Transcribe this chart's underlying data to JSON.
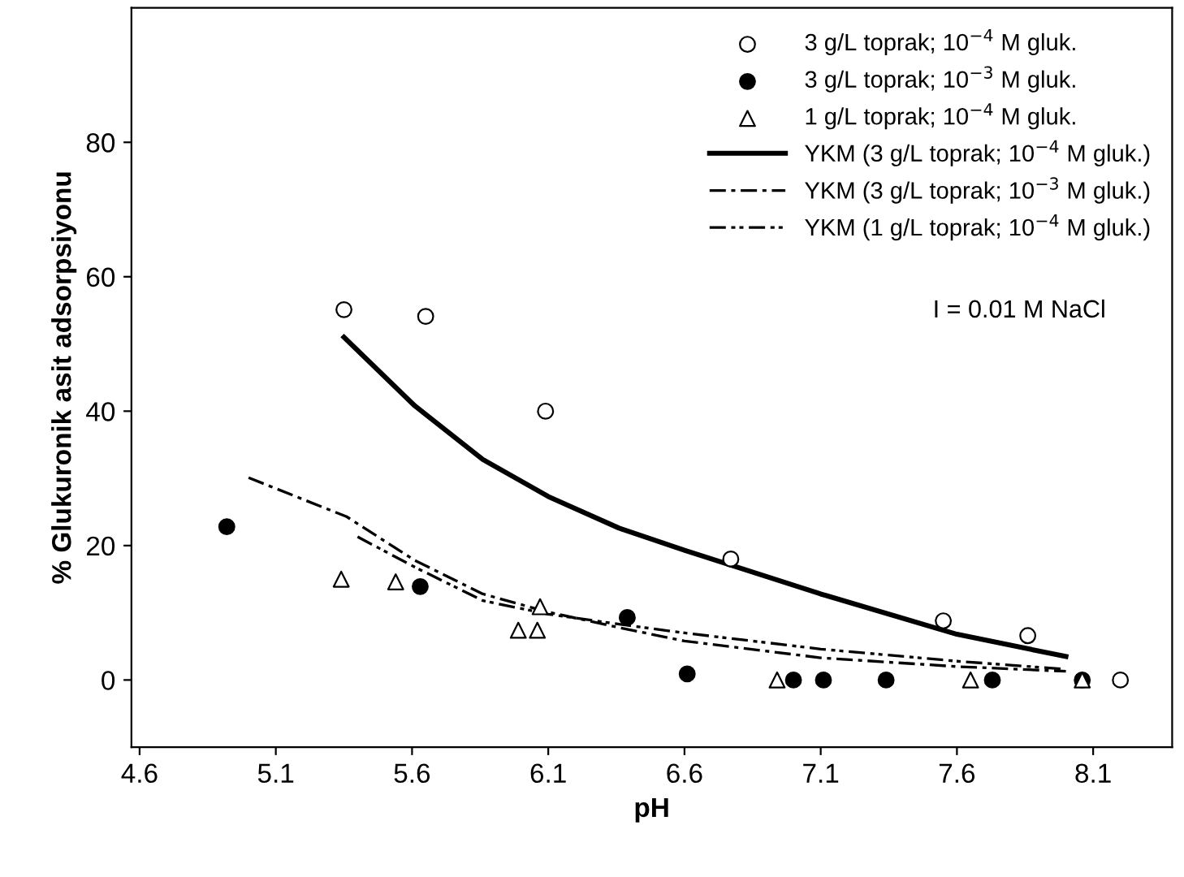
{
  "chart_data": {
    "type": "scatter",
    "xlabel": "pH",
    "ylabel": "% Glukuronik asit adsorpsiyonu",
    "xlim": [
      4.57,
      8.39
    ],
    "xticks": [
      4.6,
      5.1,
      5.6,
      6.1,
      6.6,
      7.1,
      7.6,
      8.1
    ],
    "ylim": [
      -10,
      100
    ],
    "yticks": [
      0,
      20,
      40,
      60,
      80
    ],
    "grid": false,
    "legend": "top right",
    "annotations": [
      "I = 0.01 M NaCl"
    ],
    "series": [
      {
        "name": "3 g/L toprak; 10$^{−4}$ M gluk.",
        "marker": "circle",
        "color": "#ffffff",
        "x": [
          5.35,
          5.65,
          6.09,
          6.77,
          7.55,
          7.86,
          8.2
        ],
        "values": [
          55.1,
          54.1,
          40,
          18,
          8.8,
          6.6,
          0
        ]
      },
      {
        "name": "3 g/L toprak; 10$^{−3}$ M gluk.",
        "marker": "circle",
        "color": "#000000",
        "x": [
          4.92,
          5.63,
          6.39,
          6.61,
          7.0,
          7.11,
          7.34,
          7.73,
          8.06
        ],
        "values": [
          22.8,
          13.9,
          9.3,
          0.9,
          0,
          0,
          0,
          0,
          0
        ]
      },
      {
        "name": "1 g/L toprak; 10$^{−4}$ M gluk.",
        "marker": "triangle",
        "color": "#ffffff",
        "x": [
          5.34,
          5.54,
          5.99,
          6.06,
          6.07,
          6.94,
          7.65,
          8.06
        ],
        "values": [
          15,
          14.6,
          7.4,
          7.4,
          10.9,
          0,
          0,
          0
        ]
      },
      {
        "name": "YKM (3 g/L toprak; 10$^{−4}$ M gluk.)",
        "type": "line",
        "line_style": "solid",
        "color": "#000000",
        "x": [
          5.35,
          5.61,
          5.86,
          6.1,
          6.36,
          6.6,
          7.1,
          7.6,
          8.0
        ],
        "values": [
          51,
          40.8,
          32.8,
          27.3,
          22.6,
          19.3,
          12.8,
          6.8,
          3.5
        ]
      },
      {
        "name": "YKM (3 g/L toprak; 10$^{−3}$ M gluk.)",
        "type": "line",
        "line_style": "dashdot",
        "color": "#000000",
        "x": [
          5.0,
          5.36,
          5.61,
          5.86,
          6.1,
          6.36,
          6.6,
          7.1,
          7.6,
          8.0
        ],
        "values": [
          30.1,
          24.3,
          17.8,
          12.8,
          10.1,
          7.8,
          5.8,
          3.3,
          2.0,
          1.3
        ]
      },
      {
        "name": "YKM (1 g/L toprak; 10$^{−4}$ M gluk.)",
        "type": "line",
        "line_style": "dashdotdot",
        "color": "#000000",
        "x": [
          5.4,
          5.61,
          5.86,
          6.1,
          6.36,
          6.6,
          7.1,
          7.6,
          8.0
        ],
        "values": [
          21.3,
          16.8,
          11.8,
          9.8,
          8.3,
          7.0,
          4.6,
          2.8,
          1.6
        ]
      }
    ]
  }
}
